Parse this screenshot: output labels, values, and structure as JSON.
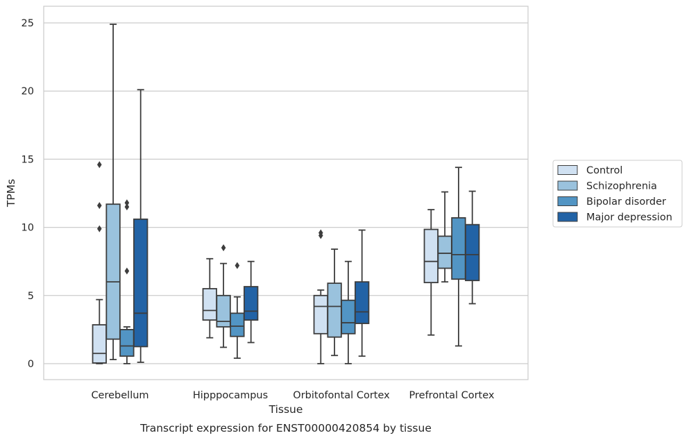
{
  "chart_data": {
    "type": "box",
    "title": "",
    "caption": "Transcript expression for ENST00000420854 by tissue",
    "xlabel": "Tissue",
    "ylabel": "TPMs",
    "ylim": [
      -1.2,
      26.2
    ],
    "yticks": [
      0,
      5,
      10,
      15,
      20,
      25
    ],
    "grid": "horizontal",
    "legend_position": "right",
    "categories": [
      "Cerebellum",
      "Hipppocampus",
      "Orbitofontal Cortex",
      "Prefrontal Cortex"
    ],
    "series": [
      {
        "name": "Control",
        "color": "#d0e1f2",
        "boxes": [
          {
            "whislo": 0.0,
            "q1": 0.05,
            "med": 0.75,
            "q3": 2.85,
            "whishi": 4.7,
            "fliers": [
              9.9,
              11.6,
              14.6
            ]
          },
          {
            "whislo": 1.9,
            "q1": 3.2,
            "med": 3.9,
            "q3": 5.5,
            "whishi": 7.7,
            "fliers": []
          },
          {
            "whislo": 0.0,
            "q1": 2.2,
            "med": 4.2,
            "q3": 5.0,
            "whishi": 5.4,
            "fliers": [
              9.4,
              9.6
            ]
          },
          {
            "whislo": 2.1,
            "q1": 5.95,
            "med": 7.5,
            "q3": 9.85,
            "whishi": 11.3,
            "fliers": []
          }
        ]
      },
      {
        "name": "Schizophrenia",
        "color": "#9ac2dd",
        "boxes": [
          {
            "whislo": 0.3,
            "q1": 1.8,
            "med": 6.0,
            "q3": 11.7,
            "whishi": 24.9,
            "fliers": []
          },
          {
            "whislo": 1.2,
            "q1": 2.7,
            "med": 3.1,
            "q3": 5.0,
            "whishi": 7.35,
            "fliers": [
              8.5
            ]
          },
          {
            "whislo": 0.6,
            "q1": 1.95,
            "med": 4.2,
            "q3": 5.9,
            "whishi": 8.4,
            "fliers": []
          },
          {
            "whislo": 6.0,
            "q1": 7.0,
            "med": 8.1,
            "q3": 9.35,
            "whishi": 12.6,
            "fliers": []
          }
        ]
      },
      {
        "name": "Bipolar disorder",
        "color": "#5295c4",
        "boxes": [
          {
            "whislo": 0.0,
            "q1": 0.55,
            "med": 1.3,
            "q3": 2.5,
            "whishi": 2.7,
            "fliers": [
              6.8,
              11.5,
              11.8
            ]
          },
          {
            "whislo": 0.4,
            "q1": 2.0,
            "med": 2.75,
            "q3": 3.7,
            "whishi": 4.9,
            "fliers": [
              7.2
            ]
          },
          {
            "whislo": 0.0,
            "q1": 2.2,
            "med": 3.0,
            "q3": 4.65,
            "whishi": 7.5,
            "fliers": []
          },
          {
            "whislo": 1.3,
            "q1": 6.2,
            "med": 8.0,
            "q3": 10.7,
            "whishi": 14.4,
            "fliers": []
          }
        ]
      },
      {
        "name": "Major depression",
        "color": "#2263a6",
        "boxes": [
          {
            "whislo": 0.1,
            "q1": 1.25,
            "med": 3.7,
            "q3": 10.6,
            "whishi": 20.1,
            "fliers": []
          },
          {
            "whislo": 1.55,
            "q1": 3.2,
            "med": 3.85,
            "q3": 5.65,
            "whishi": 7.5,
            "fliers": []
          },
          {
            "whislo": 0.55,
            "q1": 2.95,
            "med": 3.8,
            "q3": 6.0,
            "whishi": 9.8,
            "fliers": []
          },
          {
            "whislo": 4.4,
            "q1": 6.1,
            "med": 8.0,
            "q3": 10.2,
            "whishi": 12.65,
            "fliers": []
          }
        ]
      }
    ]
  }
}
